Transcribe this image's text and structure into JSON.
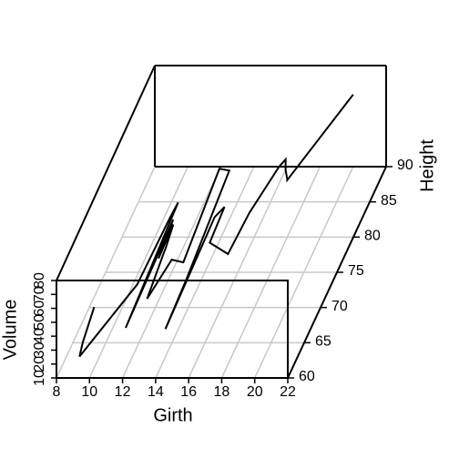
{
  "chart_data": {
    "type": "line",
    "x_label": "Girth",
    "y_label": "Height",
    "z_label": "Volume",
    "xlim": [
      8,
      22
    ],
    "xticks": [
      8,
      10,
      12,
      14,
      16,
      18,
      20,
      22
    ],
    "ylim": [
      60,
      90
    ],
    "yticks": [
      60,
      65,
      70,
      75,
      80,
      85,
      90
    ],
    "zlim": [
      10,
      80
    ],
    "zticks": [
      10,
      20,
      30,
      40,
      50,
      60,
      70,
      80
    ],
    "grid": true,
    "color": "#000000",
    "x": [
      8.3,
      8.6,
      8.8,
      10.5,
      10.7,
      10.8,
      11.0,
      11.0,
      11.1,
      11.2,
      11.3,
      11.4,
      11.4,
      11.7,
      12.0,
      12.9,
      12.9,
      13.3,
      13.7,
      13.8,
      14.0,
      14.2,
      14.5,
      16.0,
      16.3,
      17.3,
      17.5,
      17.9,
      18.0,
      18.0,
      20.6
    ],
    "y": [
      70,
      65,
      63,
      72,
      81,
      83,
      66,
      75,
      80,
      75,
      79,
      76,
      76,
      69,
      75,
      74,
      85,
      86,
      71,
      64,
      78,
      80,
      74,
      72,
      77,
      81,
      82,
      80,
      80,
      80,
      87
    ],
    "z": [
      10.3,
      10.3,
      10.2,
      16.4,
      18.8,
      19.7,
      15.6,
      18.2,
      22.6,
      19.9,
      24.2,
      21.0,
      21.4,
      21.3,
      19.1,
      22.2,
      33.8,
      27.4,
      25.7,
      24.9,
      34.5,
      31.7,
      36.3,
      38.3,
      42.6,
      55.4,
      55.7,
      58.3,
      51.5,
      51.0,
      77.0
    ]
  }
}
